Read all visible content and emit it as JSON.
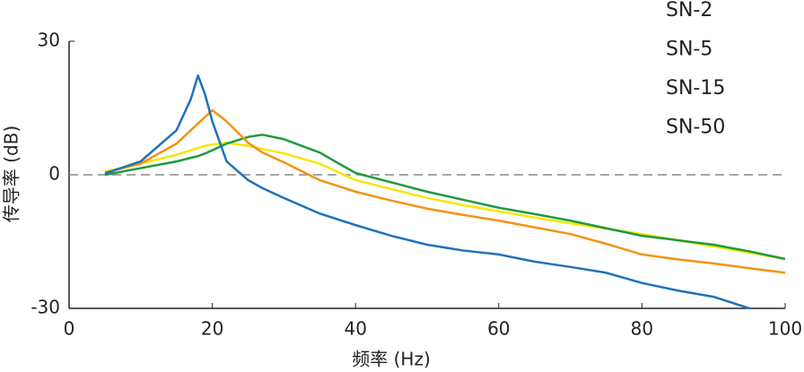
{
  "chart_data": {
    "type": "line",
    "x_label": "频率 (Hz)",
    "y_label": "传导率 (dB)",
    "x": [
      5,
      10,
      15,
      17,
      18,
      19,
      20,
      22,
      25,
      27,
      30,
      35,
      40,
      45,
      50,
      55,
      60,
      65,
      70,
      75,
      80,
      85,
      90,
      95,
      100
    ],
    "series": [
      {
        "name": "SN-2",
        "color": "#f5e800",
        "values": [
          0.7,
          2.5,
          4.5,
          5.5,
          6,
          6.5,
          6.8,
          7.2,
          6.5,
          5.8,
          4.8,
          2.5,
          -1.2,
          -3.2,
          -5.2,
          -6.8,
          -8.2,
          -9.6,
          -10.9,
          -12.1,
          -13.3,
          -14.7,
          -16.1,
          -17.5,
          -18.9
        ]
      },
      {
        "name": "SN-5",
        "color": "#1f9a3e",
        "values": [
          0,
          1.5,
          3,
          3.8,
          4.2,
          4.8,
          5.5,
          7,
          8.5,
          9,
          8,
          5,
          0.4,
          -1.7,
          -3.8,
          -5.6,
          -7.4,
          -8.8,
          -10.3,
          -12,
          -13.7,
          -14.7,
          -15.7,
          -17.2,
          -18.9
        ]
      },
      {
        "name": "SN-15",
        "color": "#f39314",
        "values": [
          0.5,
          2.5,
          7,
          10,
          11.5,
          13,
          14.5,
          12,
          7.2,
          5,
          2.8,
          -1.2,
          -3.8,
          -5.8,
          -7.6,
          -9,
          -10.3,
          -11.8,
          -13.3,
          -15.5,
          -17.9,
          -19,
          -19.9,
          -21,
          -22
        ]
      },
      {
        "name": "SN-50",
        "color": "#1f72b8",
        "values": [
          0.3,
          3,
          10,
          17,
          22.3,
          18,
          12,
          3,
          -1.2,
          -3,
          -5.2,
          -8.7,
          -11.3,
          -13.7,
          -15.7,
          -17,
          -17.9,
          -19.5,
          -20.7,
          -22,
          -24.3,
          -26,
          -27.4,
          -30,
          null
        ]
      }
    ],
    "xlim": [
      0,
      100
    ],
    "xticks": [
      0,
      20,
      40,
      60,
      80,
      100
    ],
    "ylim": [
      -30,
      30
    ],
    "yticks": [
      -30,
      0,
      30
    ],
    "reference_line": 0,
    "legend": "upper right"
  }
}
